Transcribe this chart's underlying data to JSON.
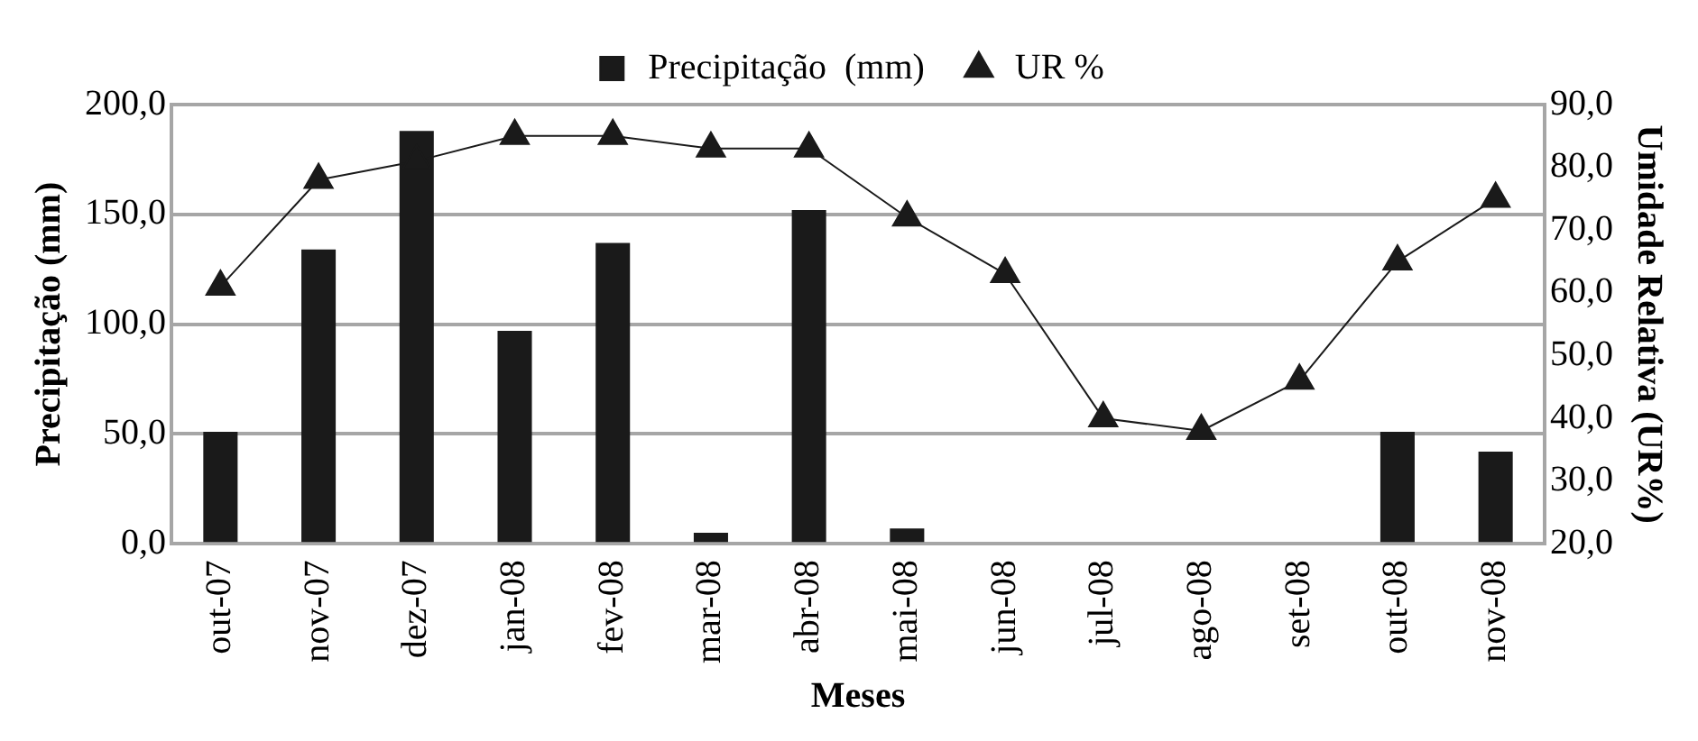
{
  "chart_data": {
    "type": "bar",
    "xlabel": "Meses",
    "ylabel": "Precipitação (mm)",
    "y2label": "Umidade Relativa (UR%)",
    "categories": [
      "out-07",
      "nov-07",
      "dez-07",
      "jan-08",
      "fev-08",
      "mar-08",
      "abr-08",
      "mai-08",
      "jun-08",
      "jul-08",
      "ago-08",
      "set-08",
      "out-08",
      "nov-08"
    ],
    "series": [
      {
        "name": "Precipitação  (mm)",
        "color": "#1a1a1a",
        "values": [
          51,
          134,
          188,
          97,
          137,
          5,
          152,
          7,
          0,
          0,
          0,
          0,
          51,
          42
        ]
      },
      {
        "name": "UR %",
        "type": "line",
        "axis": "y2",
        "color": "#1a1a1a",
        "marker": "triangle",
        "values": [
          61,
          78,
          81,
          85,
          85,
          83,
          83,
          72,
          63,
          40,
          38,
          46,
          65,
          75
        ]
      }
    ],
    "ylim": [
      0,
      200
    ],
    "yticks": [
      {
        "value": 0,
        "label": "0,0"
      },
      {
        "value": 50,
        "label": "50,0"
      },
      {
        "value": 100,
        "label": "100,0"
      },
      {
        "value": 150,
        "label": "150,0"
      },
      {
        "value": 200,
        "label": "200,0"
      }
    ],
    "y2lim": [
      20,
      90
    ],
    "y2ticks": [
      {
        "value": 20,
        "label": "20,0"
      },
      {
        "value": 30,
        "label": "30,0"
      },
      {
        "value": 40,
        "label": "40,0"
      },
      {
        "value": 50,
        "label": "50,0"
      },
      {
        "value": 60,
        "label": "60,0"
      },
      {
        "value": 70,
        "label": "70,0"
      },
      {
        "value": 80,
        "label": "80,0"
      },
      {
        "value": 90,
        "label": "90,0"
      }
    ],
    "grid": "y",
    "legend": "top"
  }
}
